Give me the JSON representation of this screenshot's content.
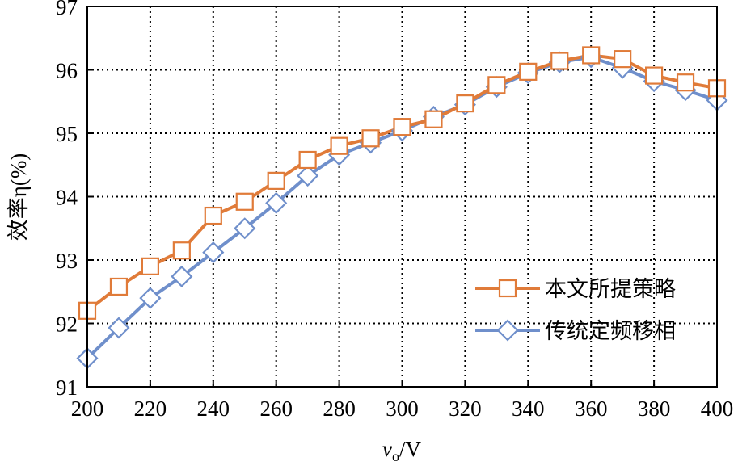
{
  "chart_data": {
    "type": "line",
    "title": "",
    "xlabel": "vo/V",
    "xlabel_main": "v",
    "xlabel_sub": "o",
    "xlabel_unit": "/V",
    "ylabel": "效率η(%)",
    "xlim": [
      200,
      400
    ],
    "ylim": [
      91,
      97
    ],
    "xticks": [
      200,
      220,
      240,
      260,
      280,
      300,
      320,
      340,
      360,
      380,
      400
    ],
    "yticks": [
      91,
      92,
      93,
      94,
      95,
      96,
      97
    ],
    "grid": true,
    "legend_position": "bottom-right",
    "x": [
      200,
      210,
      220,
      230,
      240,
      250,
      260,
      270,
      280,
      290,
      300,
      310,
      320,
      330,
      340,
      350,
      360,
      370,
      380,
      390,
      400
    ],
    "series": [
      {
        "name": "本文所提策略",
        "color": "#E07B39",
        "marker": "square",
        "values": [
          92.2,
          92.58,
          92.9,
          93.15,
          93.7,
          93.92,
          94.25,
          94.58,
          94.8,
          94.92,
          95.1,
          95.22,
          95.47,
          95.76,
          95.97,
          96.14,
          96.23,
          96.17,
          95.91,
          95.8,
          95.71
        ]
      },
      {
        "name": "传统定频移相",
        "color": "#6F8FCB",
        "marker": "diamond",
        "values": [
          91.45,
          91.93,
          92.4,
          92.74,
          93.12,
          93.5,
          93.9,
          94.33,
          94.66,
          94.85,
          95.04,
          95.26,
          95.45,
          95.73,
          95.95,
          96.12,
          96.2,
          96.03,
          95.82,
          95.68,
          95.52
        ]
      }
    ]
  }
}
